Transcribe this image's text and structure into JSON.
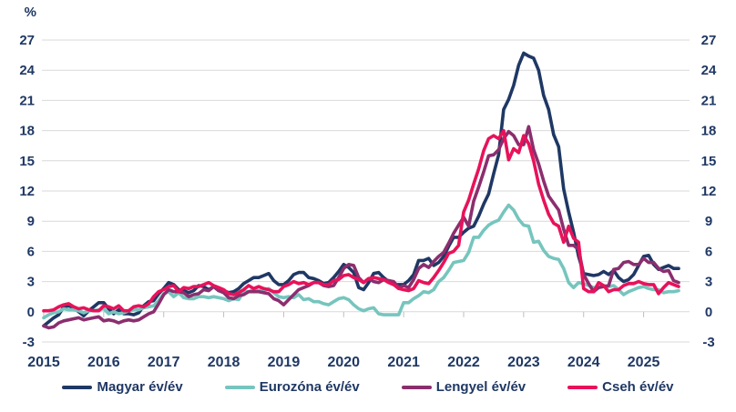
{
  "chart_data": {
    "type": "line",
    "ylabel": "%",
    "ylim": [
      -3,
      27
    ],
    "y_ticks": [
      -3,
      0,
      3,
      6,
      9,
      12,
      15,
      18,
      21,
      24,
      27
    ],
    "x_tick_labels": [
      "2015",
      "2016",
      "2017",
      "2018",
      "2019",
      "2020",
      "2021",
      "2022",
      "2023",
      "2024",
      "2025"
    ],
    "x_start": "2015-01",
    "x_end": "2025-08",
    "grid": true,
    "legend_position": "bottom",
    "axis_text_color": "#1F3864",
    "grid_color": "#D9D9D9",
    "series": [
      {
        "name": "Magyar év/év",
        "color": "#1F3864",
        "values": [
          -1.4,
          -1.0,
          -0.6,
          -0.3,
          0.5,
          0.6,
          0.4,
          0.0,
          -0.4,
          0.1,
          0.5,
          0.9,
          0.9,
          0.3,
          -0.2,
          0.2,
          -0.2,
          -0.2,
          -0.3,
          -0.1,
          0.6,
          1.0,
          1.1,
          1.8,
          2.3,
          2.9,
          2.7,
          2.2,
          2.1,
          1.9,
          2.1,
          2.6,
          2.5,
          2.2,
          2.5,
          2.1,
          2.1,
          1.9,
          2.0,
          2.3,
          2.8,
          3.1,
          3.4,
          3.4,
          3.6,
          3.8,
          3.1,
          2.7,
          2.7,
          3.1,
          3.7,
          3.9,
          3.9,
          3.4,
          3.3,
          3.1,
          2.8,
          2.9,
          3.4,
          4.0,
          4.7,
          4.4,
          3.9,
          2.4,
          2.2,
          2.9,
          3.8,
          3.9,
          3.4,
          3.0,
          2.7,
          2.7,
          2.7,
          3.1,
          3.7,
          5.1,
          5.1,
          5.3,
          4.6,
          4.9,
          5.5,
          6.5,
          7.4,
          7.4,
          7.9,
          8.3,
          8.5,
          9.5,
          10.7,
          11.7,
          13.7,
          15.6,
          20.1,
          21.1,
          22.5,
          24.5,
          25.7,
          25.4,
          25.2,
          24.0,
          21.5,
          20.1,
          17.6,
          16.4,
          12.2,
          9.9,
          7.9,
          5.5,
          3.8,
          3.7,
          3.6,
          3.7,
          4.0,
          3.7,
          4.1,
          3.4,
          3.0,
          3.2,
          3.7,
          4.6,
          5.5,
          5.6,
          4.7,
          4.2,
          4.4,
          4.6,
          4.3,
          4.3
        ]
      },
      {
        "name": "Eurozóna év/év",
        "color": "#76C5BE",
        "values": [
          -0.6,
          -0.3,
          -0.1,
          0.0,
          0.3,
          0.2,
          0.2,
          0.1,
          -0.1,
          0.1,
          0.1,
          0.2,
          0.3,
          -0.2,
          0.0,
          -0.2,
          -0.1,
          0.1,
          0.2,
          0.2,
          0.4,
          0.5,
          0.6,
          1.1,
          1.8,
          2.0,
          1.5,
          1.9,
          1.4,
          1.3,
          1.3,
          1.5,
          1.5,
          1.4,
          1.5,
          1.4,
          1.3,
          1.1,
          1.3,
          1.2,
          2.0,
          2.0,
          2.2,
          2.1,
          2.1,
          2.3,
          1.9,
          1.5,
          1.4,
          1.5,
          1.4,
          1.7,
          1.2,
          1.3,
          1.0,
          1.0,
          0.8,
          0.7,
          1.0,
          1.3,
          1.4,
          1.2,
          0.7,
          0.3,
          0.1,
          0.3,
          0.4,
          -0.2,
          -0.3,
          -0.3,
          -0.3,
          -0.3,
          0.9,
          0.9,
          1.3,
          1.6,
          2.0,
          1.9,
          2.2,
          3.0,
          3.4,
          4.1,
          4.9,
          5.0,
          5.1,
          5.9,
          7.4,
          7.4,
          8.1,
          8.6,
          8.9,
          9.1,
          9.9,
          10.6,
          10.1,
          9.2,
          8.6,
          8.5,
          6.9,
          7.0,
          6.1,
          5.5,
          5.3,
          5.2,
          4.3,
          2.9,
          2.4,
          2.9,
          2.8,
          2.6,
          2.4,
          2.4,
          2.6,
          2.5,
          2.6,
          2.2,
          1.7,
          2.0,
          2.2,
          2.4,
          2.5,
          2.3,
          2.2,
          2.2,
          1.9,
          2.0,
          2.0,
          2.1
        ]
      },
      {
        "name": "Lengyel év/év",
        "color": "#8B2E6E",
        "values": [
          -1.4,
          -1.6,
          -1.5,
          -1.1,
          -0.9,
          -0.8,
          -0.7,
          -0.6,
          -0.8,
          -0.7,
          -0.6,
          -0.5,
          -0.9,
          -0.8,
          -0.9,
          -1.1,
          -0.9,
          -0.8,
          -0.9,
          -0.8,
          -0.5,
          -0.2,
          0.0,
          0.8,
          1.7,
          2.2,
          2.0,
          2.0,
          1.9,
          1.5,
          1.7,
          1.8,
          2.2,
          2.1,
          2.5,
          2.1,
          1.9,
          1.4,
          1.3,
          1.6,
          1.7,
          2.0,
          2.0,
          2.0,
          1.9,
          1.8,
          1.3,
          1.1,
          0.7,
          1.2,
          1.7,
          2.2,
          2.4,
          2.6,
          2.9,
          2.9,
          2.6,
          2.5,
          2.6,
          3.4,
          4.3,
          4.7,
          4.6,
          3.4,
          2.9,
          3.3,
          3.0,
          2.9,
          3.2,
          3.1,
          3.0,
          2.4,
          2.6,
          2.4,
          3.2,
          4.3,
          4.7,
          4.4,
          5.0,
          5.5,
          5.9,
          6.8,
          7.8,
          8.6,
          9.4,
          8.5,
          11.0,
          12.4,
          13.9,
          15.5,
          15.6,
          16.1,
          17.2,
          17.9,
          17.5,
          16.6,
          16.6,
          18.4,
          16.1,
          14.7,
          13.0,
          11.5,
          10.8,
          10.1,
          8.2,
          6.6,
          6.6,
          6.2,
          3.7,
          2.8,
          2.0,
          2.4,
          2.5,
          2.6,
          4.2,
          4.3,
          4.9,
          5.0,
          4.7,
          4.7,
          5.3,
          4.9,
          4.9,
          4.3,
          4.0,
          4.1,
          3.1,
          2.9
        ]
      },
      {
        "name": "Cseh év/év",
        "color": "#E8125A",
        "values": [
          0.1,
          0.1,
          0.2,
          0.5,
          0.7,
          0.8,
          0.5,
          0.3,
          0.4,
          0.2,
          0.1,
          0.1,
          0.6,
          0.5,
          0.3,
          0.6,
          0.1,
          0.1,
          0.5,
          0.6,
          0.5,
          0.8,
          1.5,
          2.0,
          2.2,
          2.5,
          2.6,
          2.0,
          2.4,
          2.3,
          2.5,
          2.5,
          2.7,
          2.9,
          2.6,
          2.4,
          2.2,
          1.8,
          1.7,
          1.9,
          2.2,
          2.6,
          2.3,
          2.5,
          2.3,
          2.2,
          2.0,
          2.0,
          2.5,
          2.7,
          3.0,
          2.8,
          2.9,
          2.7,
          2.9,
          2.9,
          2.7,
          2.7,
          3.1,
          3.2,
          3.6,
          3.7,
          3.4,
          3.2,
          2.9,
          3.3,
          3.4,
          3.3,
          3.2,
          2.9,
          2.7,
          2.3,
          2.2,
          2.1,
          2.3,
          3.1,
          2.9,
          2.8,
          3.4,
          4.1,
          4.9,
          5.8,
          6.0,
          6.6,
          9.9,
          11.1,
          12.7,
          14.2,
          16.0,
          17.2,
          17.5,
          17.2,
          18.0,
          15.1,
          16.2,
          15.8,
          17.5,
          16.7,
          15.0,
          12.7,
          11.1,
          9.7,
          8.8,
          8.5,
          6.9,
          8.5,
          7.3,
          6.9,
          2.3,
          2.0,
          2.0,
          2.9,
          2.6,
          2.0,
          2.2,
          2.2,
          2.6,
          2.8,
          2.8,
          3.0,
          2.8,
          2.7,
          2.7,
          1.8,
          2.4,
          2.9,
          2.7,
          2.5
        ]
      }
    ]
  }
}
